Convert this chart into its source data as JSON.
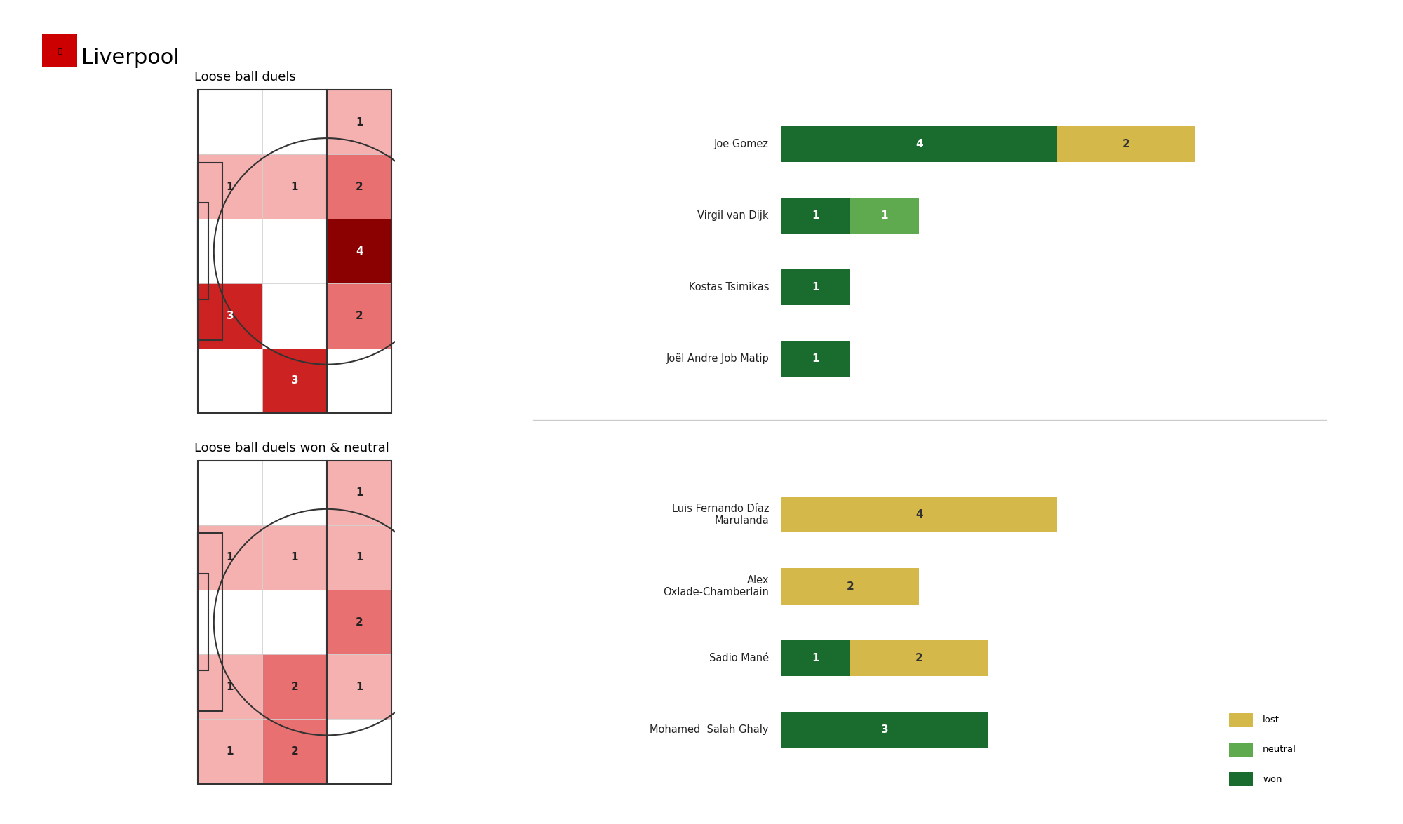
{
  "title": "Liverpool",
  "background_color": "#ffffff",
  "heatmap1_title": "Loose ball duels",
  "heatmap2_title": "Loose ball duels won & neutral",
  "heatmap1_values": [
    [
      0,
      0,
      1
    ],
    [
      1,
      1,
      2
    ],
    [
      0,
      0,
      4
    ],
    [
      3,
      0,
      2
    ],
    [
      0,
      3,
      0
    ]
  ],
  "heatmap2_values": [
    [
      0,
      0,
      1
    ],
    [
      1,
      1,
      1
    ],
    [
      0,
      0,
      2
    ],
    [
      1,
      2,
      1
    ],
    [
      1,
      2,
      0
    ]
  ],
  "bar_players_top": [
    {
      "name": "Joe Gomez",
      "won": 4,
      "neutral": 0,
      "lost": 2
    },
    {
      "name": "Virgil van Dijk",
      "won": 1,
      "neutral": 1,
      "lost": 0
    },
    {
      "name": "Kostas Tsimikas",
      "won": 1,
      "neutral": 0,
      "lost": 0
    },
    {
      "name": "Joël Andre Job Matip",
      "won": 1,
      "neutral": 0,
      "lost": 0
    }
  ],
  "bar_players_bottom": [
    {
      "name": "Luis Fernando Díaz\nMarulanda",
      "won": 0,
      "neutral": 0,
      "lost": 4
    },
    {
      "name": "Alex\nOxlade-Chamberlain",
      "won": 0,
      "neutral": 0,
      "lost": 2
    },
    {
      "name": "Sadio Mané",
      "won": 1,
      "neutral": 0,
      "lost": 2
    },
    {
      "name": "Mohamed  Salah Ghaly",
      "won": 3,
      "neutral": 0,
      "lost": 0
    }
  ],
  "color_won": "#1a6b2e",
  "color_neutral": "#5faa4e",
  "color_lost": "#d4b84a",
  "pitch_line_color": "#333333",
  "divider_color": "#cccccc"
}
